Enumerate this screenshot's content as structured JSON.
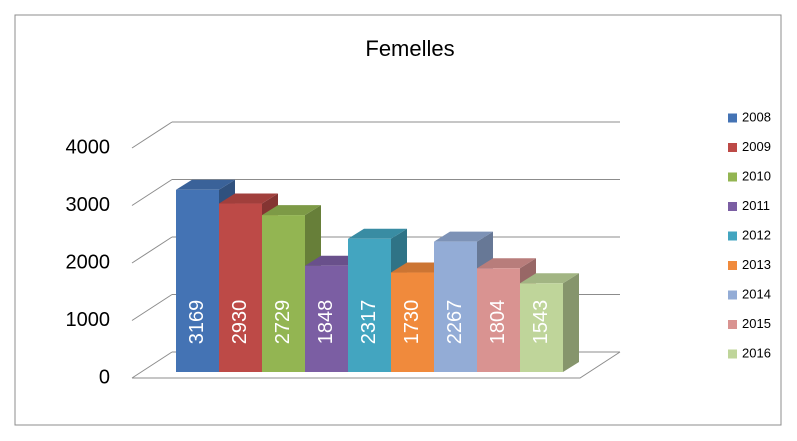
{
  "chart_data": {
    "type": "bar",
    "title": "Femelles",
    "series": [
      {
        "name": "2008",
        "color": "#4473b4",
        "values": [
          3169
        ]
      },
      {
        "name": "2009",
        "color": "#bd4a47",
        "values": [
          2930
        ]
      },
      {
        "name": "2010",
        "color": "#93b552",
        "values": [
          2729
        ]
      },
      {
        "name": "2011",
        "color": "#7b5ea3",
        "values": [
          1848
        ]
      },
      {
        "name": "2012",
        "color": "#43a5c0",
        "values": [
          2317
        ]
      },
      {
        "name": "2013",
        "color": "#f08a3c",
        "values": [
          1730
        ]
      },
      {
        "name": "2014",
        "color": "#93acd6",
        "values": [
          2267
        ]
      },
      {
        "name": "2015",
        "color": "#d99391",
        "values": [
          1804
        ]
      },
      {
        "name": "2016",
        "color": "#bfd59a",
        "values": [
          1543
        ]
      }
    ],
    "ylim": [
      0,
      4000
    ],
    "yticks": [
      0,
      1000,
      2000,
      3000,
      4000
    ],
    "grid": true,
    "legend": "right"
  }
}
